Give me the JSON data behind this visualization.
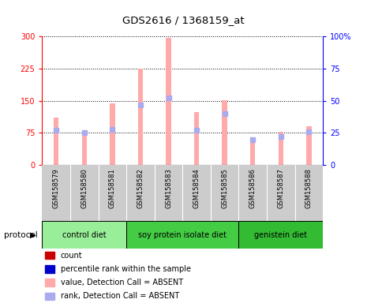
{
  "title": "GDS2616 / 1368159_at",
  "samples": [
    "GSM158579",
    "GSM158580",
    "GSM158581",
    "GSM158582",
    "GSM158583",
    "GSM158584",
    "GSM158585",
    "GSM158586",
    "GSM158587",
    "GSM158588"
  ],
  "value_absent": [
    110,
    80,
    143,
    225,
    296,
    123,
    152,
    55,
    78,
    90
  ],
  "rank_absent": [
    27,
    25,
    28,
    47,
    52,
    27,
    40,
    20,
    22,
    26
  ],
  "groups": [
    {
      "label": "control diet",
      "start": 0,
      "end": 3,
      "color": "#99ee99"
    },
    {
      "label": "soy protein isolate diet",
      "start": 3,
      "end": 7,
      "color": "#44cc44"
    },
    {
      "label": "genistein diet",
      "start": 7,
      "end": 10,
      "color": "#33bb33"
    }
  ],
  "ylim_left": [
    0,
    300
  ],
  "ylim_right": [
    0,
    100
  ],
  "yticks_left": [
    0,
    75,
    150,
    225,
    300
  ],
  "yticks_right": [
    0,
    25,
    50,
    75,
    100
  ],
  "value_color": "#ffaaaa",
  "rank_color": "#aaaaee",
  "sample_bg": "#cccccc",
  "plot_bg": "#ffffff",
  "legend_items": [
    {
      "label": "count",
      "color": "#cc0000"
    },
    {
      "label": "percentile rank within the sample",
      "color": "#0000cc"
    },
    {
      "label": "value, Detection Call = ABSENT",
      "color": "#ffaaaa"
    },
    {
      "label": "rank, Detection Call = ABSENT",
      "color": "#aaaaee"
    }
  ]
}
